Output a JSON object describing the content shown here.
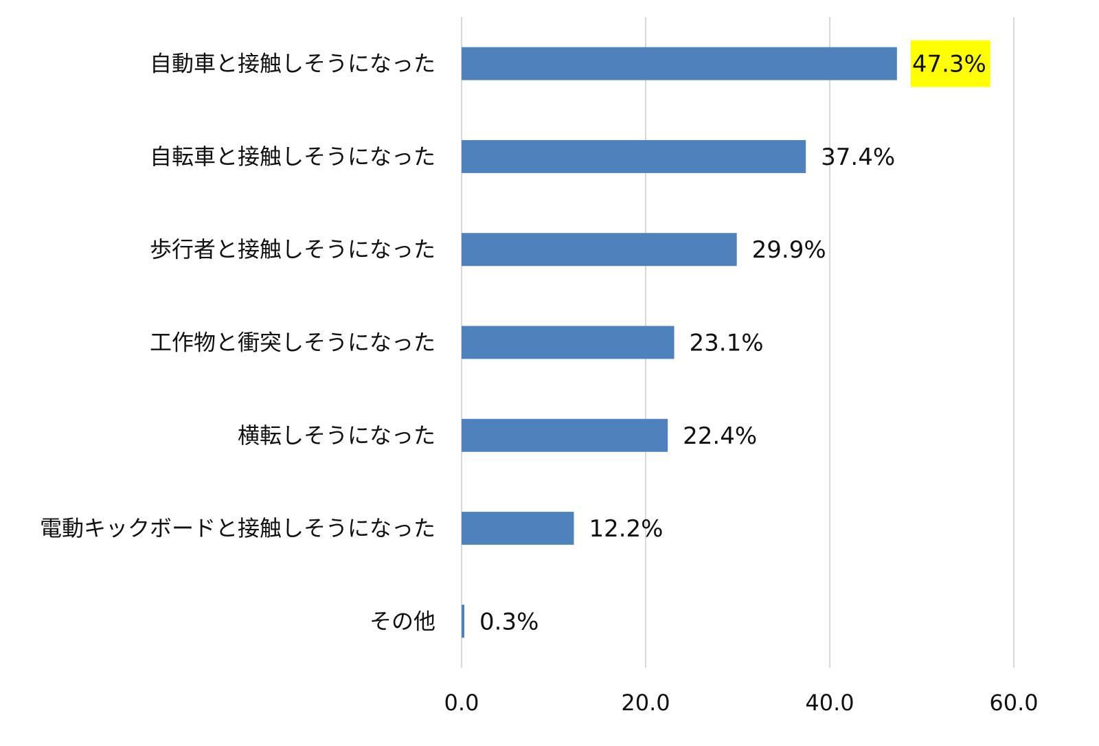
{
  "chart_data": {
    "type": "bar",
    "orientation": "horizontal",
    "categories": [
      "自動車と接触しそうになった",
      "自転車と接触しそうになった",
      "歩行者と接触しそうになった",
      "工作物と衝突しそうになった",
      "横転しそうになった",
      "電動キックボードと接触しそうになった",
      "その他"
    ],
    "values": [
      47.3,
      37.4,
      29.9,
      23.1,
      22.4,
      12.2,
      0.3
    ],
    "data_labels": [
      "47.3%",
      "37.4%",
      "29.9%",
      "23.1%",
      "22.4%",
      "12.2%",
      "0.3%"
    ],
    "highlighted_label_index": 0,
    "xlim": [
      0,
      60
    ],
    "xticks": [
      0,
      20,
      40,
      60
    ],
    "xtick_labels": [
      "0.0",
      "20.0",
      "40.0",
      "60.0"
    ],
    "grid": "vertical",
    "colors": {
      "bar": "#4F81BD",
      "grid": "#D9D9D9",
      "highlight": "#FFFF00"
    }
  }
}
